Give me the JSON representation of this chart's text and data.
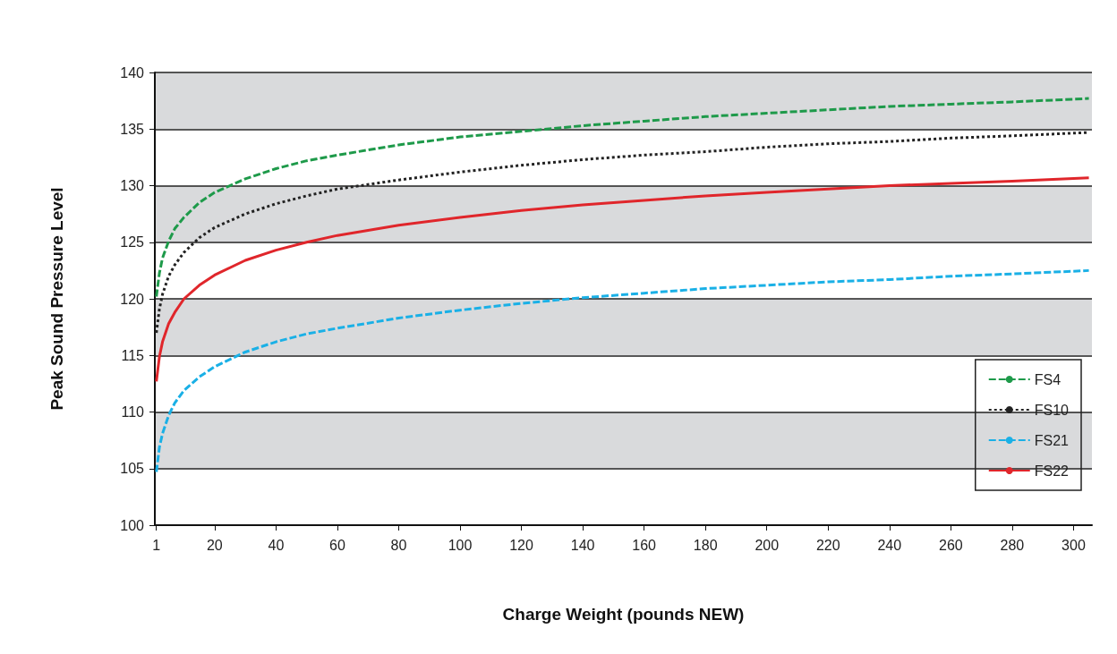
{
  "chart_data": {
    "type": "line",
    "xlabel": "Charge Weight (pounds NEW)",
    "ylabel": "Peak Sound Pressure Level",
    "x": [
      1,
      2,
      3,
      5,
      7,
      10,
      15,
      20,
      30,
      40,
      50,
      60,
      80,
      100,
      120,
      140,
      160,
      180,
      200,
      220,
      240,
      260,
      280,
      305
    ],
    "series": [
      {
        "name": "FS4",
        "color": "#1e9a4a",
        "line_style": "dashed",
        "values": [
          120.2,
          122.3,
          123.6,
          125.1,
          126.2,
          127.2,
          128.5,
          129.4,
          130.6,
          131.5,
          132.2,
          132.7,
          133.6,
          134.3,
          134.8,
          135.3,
          135.7,
          136.1,
          136.4,
          136.7,
          137.0,
          137.2,
          137.4,
          137.7
        ]
      },
      {
        "name": "FS10",
        "color": "#222222",
        "line_style": "dotted",
        "values": [
          117.0,
          119.1,
          120.4,
          122.0,
          123.0,
          124.1,
          125.4,
          126.3,
          127.5,
          128.4,
          129.1,
          129.7,
          130.5,
          131.2,
          131.8,
          132.3,
          132.7,
          133.0,
          133.4,
          133.7,
          133.9,
          134.2,
          134.4,
          134.7
        ]
      },
      {
        "name": "FS21",
        "color": "#1ab0e6",
        "line_style": "dashed",
        "values": [
          104.7,
          106.9,
          108.1,
          109.7,
          110.8,
          111.9,
          113.1,
          114.0,
          115.3,
          116.2,
          116.9,
          117.4,
          118.3,
          119.0,
          119.6,
          120.1,
          120.5,
          120.9,
          121.2,
          121.5,
          121.7,
          122.0,
          122.2,
          122.5
        ]
      },
      {
        "name": "FS22",
        "color": "#e0262b",
        "line_style": "solid",
        "values": [
          112.7,
          114.9,
          116.2,
          117.8,
          118.8,
          120.0,
          121.2,
          122.1,
          123.4,
          124.3,
          125.0,
          125.6,
          126.5,
          127.2,
          127.8,
          128.3,
          128.7,
          129.1,
          129.4,
          129.7,
          130.0,
          130.2,
          130.4,
          130.7
        ]
      }
    ],
    "xlim": [
      0.5,
      306
    ],
    "xticks": [
      1,
      20,
      40,
      60,
      80,
      100,
      120,
      140,
      160,
      180,
      200,
      220,
      240,
      260,
      280,
      300
    ],
    "ylim": [
      100,
      140
    ],
    "yticks": [
      100,
      105,
      110,
      115,
      120,
      125,
      130,
      135,
      140
    ],
    "grid": "y",
    "legend": "bottom right",
    "marker": "none"
  }
}
